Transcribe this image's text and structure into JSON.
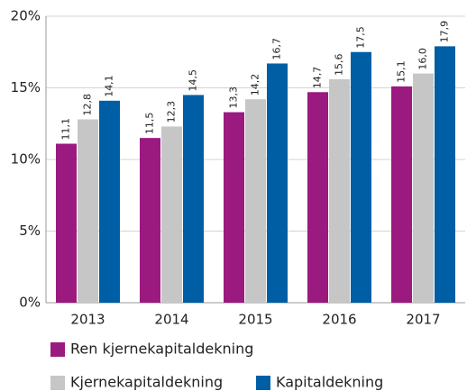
{
  "chart_data": {
    "type": "bar",
    "categories": [
      "2013",
      "2014",
      "2015",
      "2016",
      "2017"
    ],
    "series": [
      {
        "name": "Ren kjernekapitaldekning",
        "color": "#9b1a7f",
        "values": [
          11.1,
          11.5,
          13.3,
          14.7,
          15.1
        ],
        "value_labels": [
          "11,1",
          "11,5",
          "13,3",
          "14,7",
          "15,1"
        ]
      },
      {
        "name": "Kjernekapitaldekning",
        "color": "#c6c6c6",
        "values": [
          12.8,
          12.3,
          14.2,
          15.6,
          16.0
        ],
        "value_labels": [
          "12,8",
          "12,3",
          "14,2",
          "15,6",
          "16,0"
        ]
      },
      {
        "name": "Kapitaldekning",
        "color": "#005ea5",
        "values": [
          14.1,
          14.5,
          16.7,
          17.5,
          17.9
        ],
        "value_labels": [
          "14,1",
          "14,5",
          "16,7",
          "17,5",
          "17,9"
        ]
      }
    ],
    "ylim": [
      0,
      20
    ],
    "yticks": [
      {
        "value": 0,
        "label": "0%"
      },
      {
        "value": 5,
        "label": "5%"
      },
      {
        "value": 10,
        "label": "10%"
      },
      {
        "value": 15,
        "label": "15%"
      },
      {
        "value": 20,
        "label": "20%"
      }
    ],
    "grid": true
  }
}
